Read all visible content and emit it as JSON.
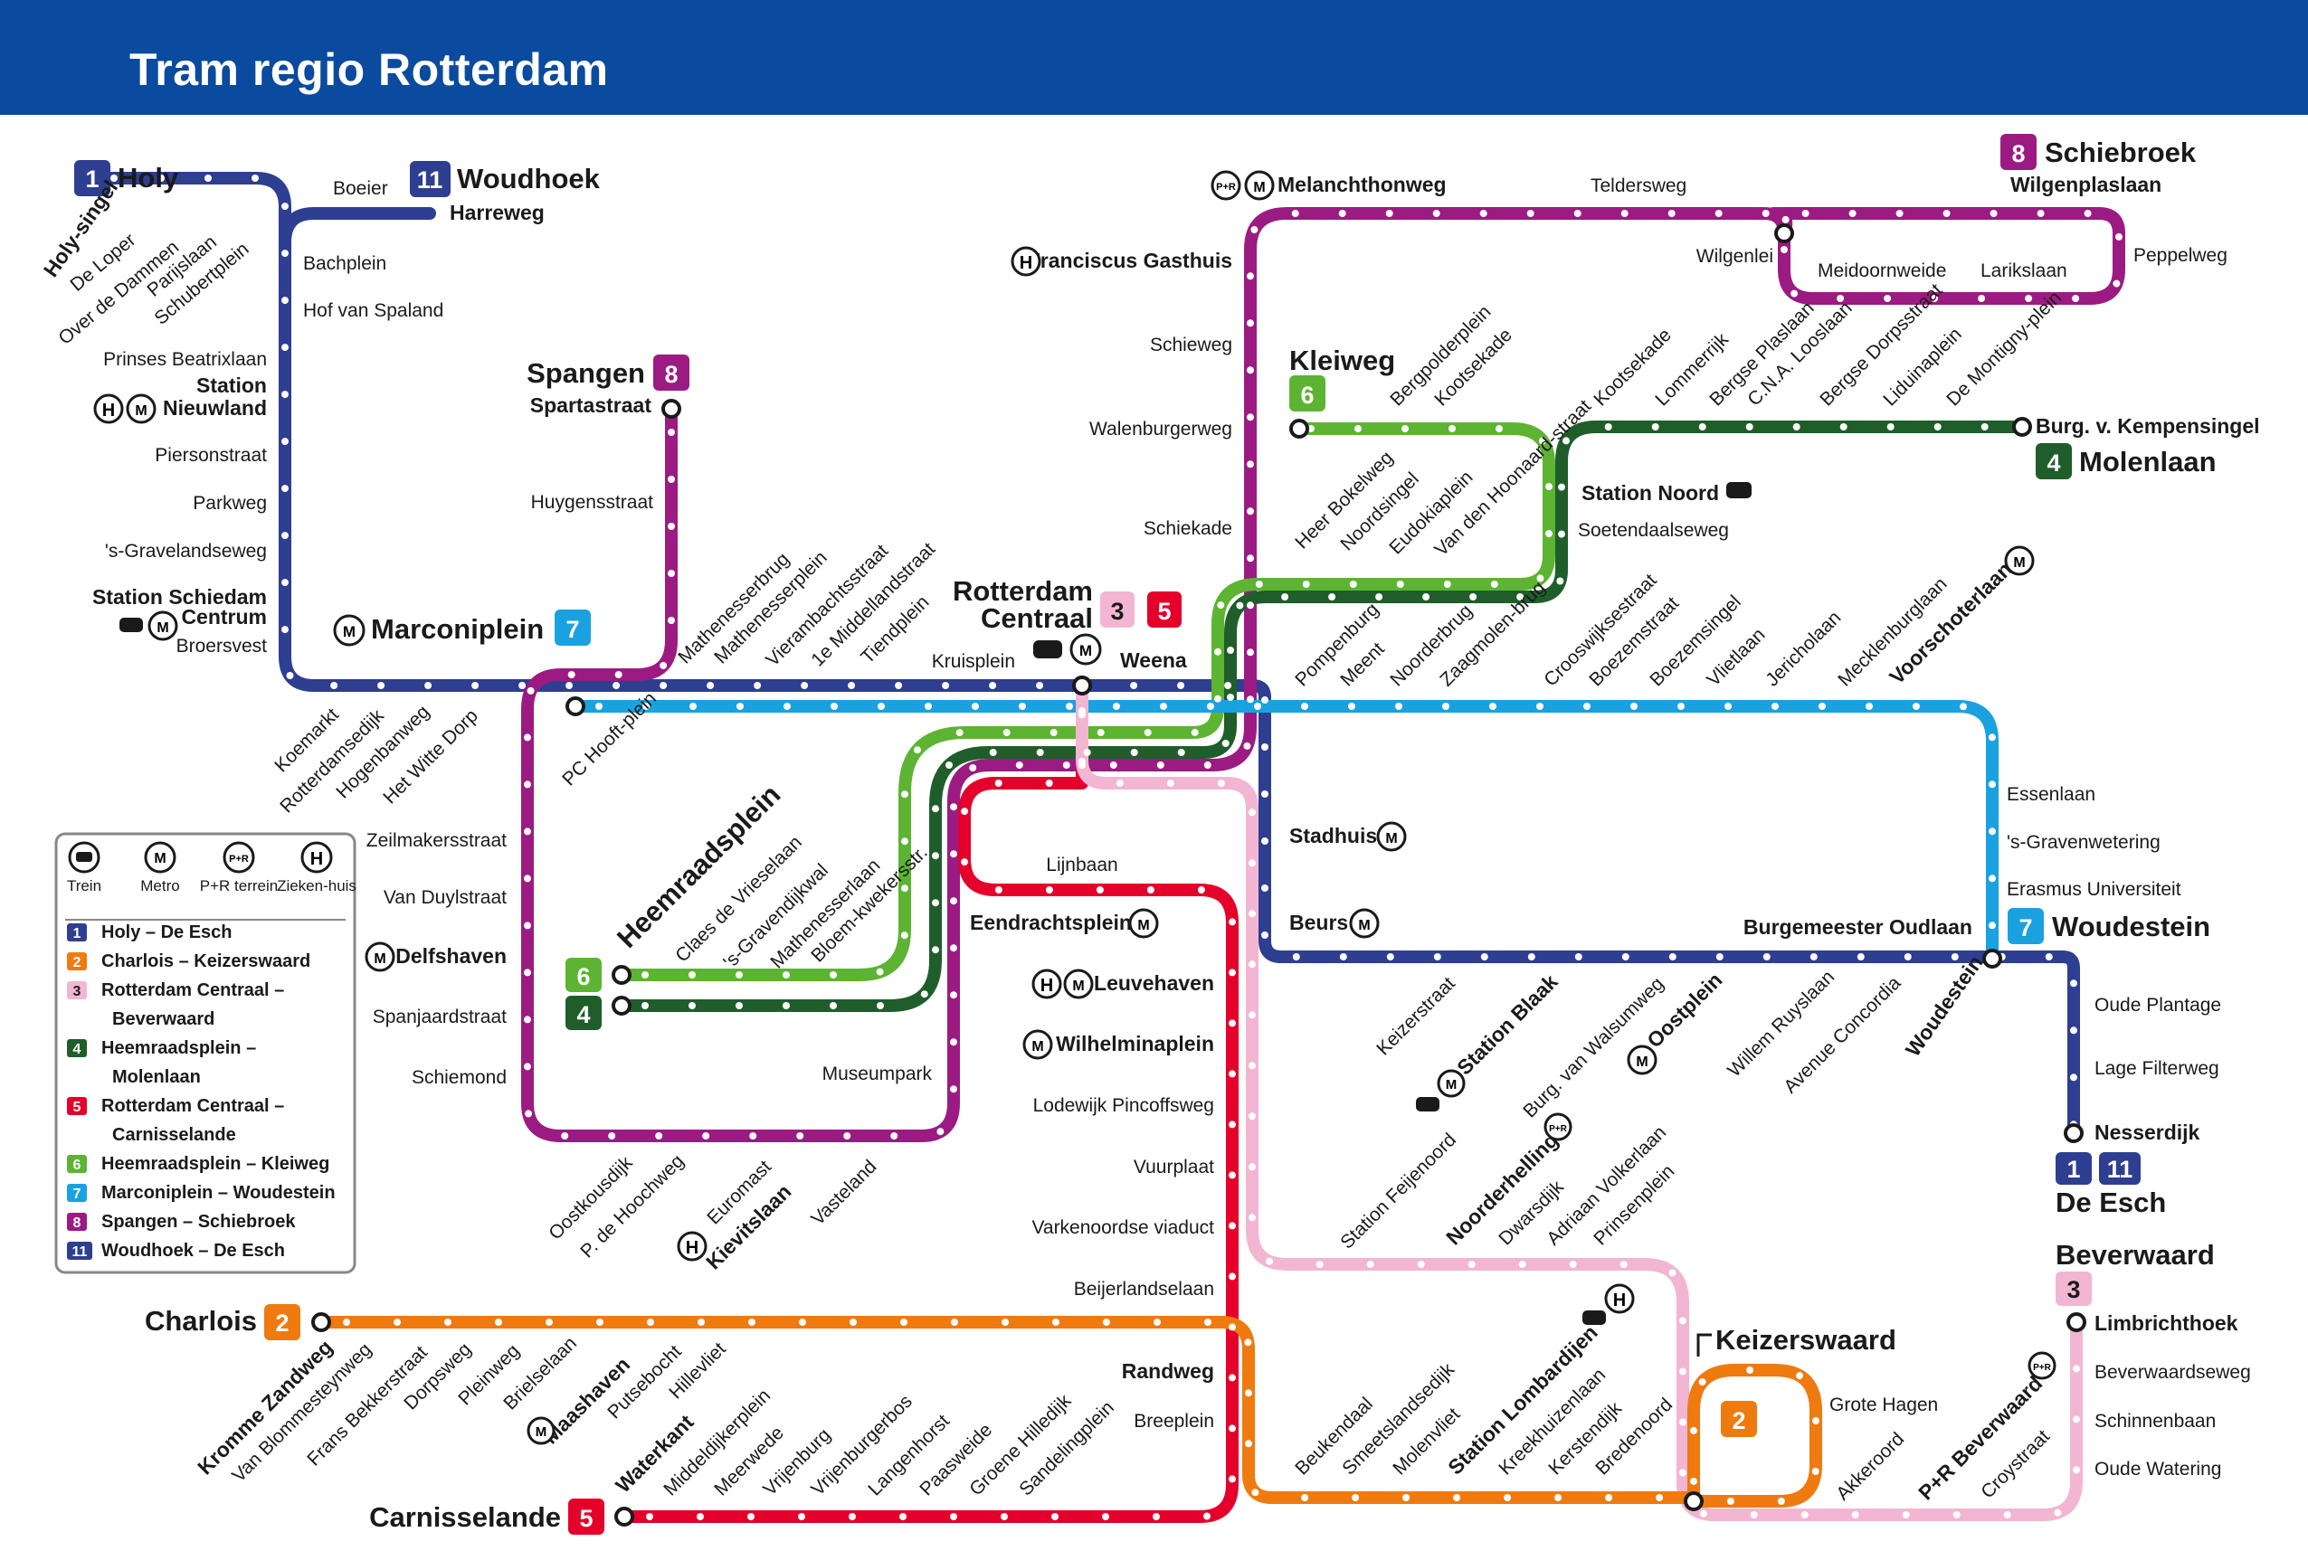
{
  "title": "Tram regio Rotterdam",
  "colors": {
    "header": "#0a4a9f",
    "line1": "#2e3e90",
    "line2": "#ef7a10",
    "line3": "#f2b6d2",
    "line4": "#1f5e2a",
    "line5": "#e4002b",
    "line6": "#5cb432",
    "line7": "#1aa1e0",
    "line8": "#9b1b83",
    "line11": "#2e3e90"
  },
  "terminals": {
    "holy": {
      "number": "1",
      "name": "Holy"
    },
    "woudhoek": {
      "number": "11",
      "name": "Woudhoek"
    },
    "spangen": {
      "number": "8",
      "name": "Spangen"
    },
    "schiebroek": {
      "number": "8",
      "name": "Schiebroek"
    },
    "kleiweg": {
      "number": "6",
      "name": "Kleiweg"
    },
    "molenlaan": {
      "number": "4",
      "name": "Molenlaan"
    },
    "marconiplein": {
      "number": "7",
      "name": "Marconiplein"
    },
    "rotterdam_centraal": {
      "numbers": [
        "3",
        "5"
      ],
      "name1": "Rotterdam",
      "name2": "Centraal"
    },
    "heemraadsplein": {
      "numbers": [
        "6",
        "4"
      ],
      "name": "Heemraadsplein"
    },
    "woudestein": {
      "number": "7",
      "name": "Woudestein"
    },
    "de_esch": {
      "numbers": [
        "1",
        "11"
      ],
      "name": "De Esch"
    },
    "beverwaard": {
      "number": "3",
      "name": "Beverwaard"
    },
    "charlois": {
      "number": "2",
      "name": "Charlois"
    },
    "carnisselande": {
      "number": "5",
      "name": "Carnisselande"
    },
    "keizerswaard": {
      "number": "2",
      "name": "Keizerswaard"
    }
  },
  "stations": {
    "holy_singel": "Holy-singel",
    "de_loper": "De Loper",
    "over_de_dammen": "Over de Dammen",
    "parijslaan": "Parijslaan",
    "schubertplein": "Schubertplein",
    "boeier": "Boeier",
    "harreweg": "Harreweg",
    "bachplein": "Bachplein",
    "hof_van_spaland": "Hof van Spaland",
    "prinses_beatrixlaan": "Prinses Beatrixlaan",
    "station_nieuwland_1": "Station",
    "station_nieuwland_2": "Nieuwland",
    "piersonstraat": "Piersonstraat",
    "parkweg": "Parkweg",
    "s_gravelandseweg": "'s-Gravelandseweg",
    "station_schiedam_1": "Station Schiedam",
    "station_schiedam_2": "Centrum",
    "broersvest": "Broersvest",
    "spartastraat": "Spartastraat",
    "huygensstraat": "Huygensstraat",
    "koemarkt": "Koemarkt",
    "rotterdamsedijk": "Rotterdamsedijk",
    "hogenbanweg": "Hogenbanweg",
    "het_witte_dorp": "Het Witte Dorp",
    "pc_hooftplein": "PC Hooft-plein",
    "mathenesserbrug": "Mathenesserbrug",
    "mathenesserplein": "Mathenesserplein",
    "vierambachtsstraat": "Vierambachtsstraat",
    "eerste_middellandstraat": "1e Middellandstraat",
    "tiendplein": "Tiendplein",
    "kruisplein": "Kruisplein",
    "weena": "Weena",
    "melanchthonweg": "Melanchthonweg",
    "teldersweg": "Teldersweg",
    "wilgenplaslaan": "Wilgenplaslaan",
    "wilgenlei": "Wilgenlei",
    "meidoornweide": "Meidoornweide",
    "larikslaan": "Larikslaan",
    "peppelweg": "Peppelweg",
    "franciscus_gasthuis": "Franciscus Gasthuis",
    "schieweg": "Schieweg",
    "walenburgerweg": "Walenburgerweg",
    "schiekade": "Schiekade",
    "bergpolderplein": "Bergpolderplein",
    "kootsekade_6": "Kootsekade",
    "kootsekade_4": "Kootsekade",
    "lommerrijk": "Lommerrijk",
    "bergse_plaslaan": "Bergse Plaslaan",
    "cna_looslaan": "C.N.A. Looslaan",
    "bergse_dorpsstraat": "Bergse Dorpsstraat",
    "liduinaplein": "Liduinaplein",
    "de_montignyplein": "De Montigny-plein",
    "burg_v_kempensingel": "Burg. v. Kempensingel",
    "station_noord": "Station Noord",
    "soetendaalseweg": "Soetendaalseweg",
    "heer_bokelweg": "Heer Bokelweg",
    "noordsingel": "Noordsingel",
    "eudokiaplein": "Eudokiaplein",
    "van_den_hoonaardstraat": "Van den Hoonaard-straat",
    "pompenburg": "Pompenburg",
    "meent": "Meent",
    "noorderbrug": "Noorderbrug",
    "zaagmolenbrug": "Zaagmolen-brug",
    "crooswijksestraat": "Crooswijksestraat",
    "boezemstraat": "Boezemstraat",
    "boezemsingel": "Boezemsingel",
    "vlietlaan": "Vlietlaan",
    "jericholaan": "Jericholaan",
    "mecklenburglaan": "Mecklenburglaan",
    "voorschoterlaan": "Voorschoterlaan",
    "essenlaan": "Essenlaan",
    "s_gravenwetering": "'s-Gravenwetering",
    "erasmus_universiteit": "Erasmus Universiteit",
    "burgemeester_oudlaan": "Burgemeester Oudlaan",
    "oude_plantage": "Oude Plantage",
    "lage_filterweg": "Lage Filterweg",
    "nesserdijk": "Nesserdijk",
    "stadhuis": "Stadhuis",
    "beurs": "Beurs",
    "eendrachtsplein": "Eendrachtsplein",
    "lijnbaan": "Lijnbaan",
    "leuvehaven": "Leuvehaven",
    "wilhelminaplein": "Wilhelminaplein",
    "lodewijk_pincoffsweg": "Lodewijk Pincoffsweg",
    "vuurplaat": "Vuurplaat",
    "varkenoordse_viaduct": "Varkenoordse viaduct",
    "beijerlandselaan": "Beijerlandselaan",
    "randweg": "Randweg",
    "breeplein": "Breeplein",
    "claes_de_vrieselaan": "Claes de Vrieselaan",
    "s_gravendijkwal": "'s-Gravendijkwal",
    "mathenesserlaan": "Mathenesserlaan",
    "bloemkwekersstr": "Bloem-kwekersstr.",
    "zeilmakersstraat": "Zeilmakersstraat",
    "van_duylstraat": "Van Duylstraat",
    "delfshaven": "Delfshaven",
    "spanjaardstraat": "Spanjaardstraat",
    "schiemond": "Schiemond",
    "museumpark": "Museumpark",
    "oostkousdijk": "Oostkousdijk",
    "p_de_hoochweg": "P. de Hoochweg",
    "euromast": "Euromast",
    "kievitslaan": "Kievitslaan",
    "vasteland": "Vasteland",
    "keizerstraat": "Keizerstraat",
    "station_blaak": "Station Blaak",
    "burg_van_walsumweg": "Burg. van Walsumweg",
    "oostplein": "Oostplein",
    "willem_ruyslaan": "Willem Ruyslaan",
    "avenue_concordia": "Avenue Concordia",
    "woudestein_stop": "Woudestein",
    "station_feijenoord": "Station Feijenoord",
    "noorderhelling": "Noorderhelling",
    "dwarsdijk": "Dwarsdijk",
    "adriaan_volkerlaan": "Adriaan Volkerlaan",
    "prinsenplein": "Prinsenplein",
    "limbrichthoek": "Limbrichthoek",
    "beverwaardseweg": "Beverwaardseweg",
    "schinnenbaan": "Schinnenbaan",
    "oude_watering": "Oude Watering",
    "grote_hagen": "Grote Hagen",
    "akkeroord": "Akkeroord",
    "p_r_beverwaard": "P+R Beverwaard",
    "croystraat": "Croystraat",
    "kromme_zandweg": "Kromme Zandweg",
    "van_blommesteynweg": "Van Blommesteynweg",
    "frans_bekkerstraat": "Frans Bekkerstraat",
    "dorpsweg": "Dorpsweg",
    "pleinweg": "Pleinweg",
    "brielselaan": "Brielselaan",
    "maashaven": "Maashaven",
    "putsebocht": "Putsebocht",
    "hillevliet": "Hillevliet",
    "waterkant": "Waterkant",
    "middeldijkerplein": "Middeldijkerplein",
    "meerwede": "Meerwede",
    "vrijenburg": "Vrijenburg",
    "vrijenburgerbos": "Vrijenburgerbos",
    "langenhorst": "Langenhorst",
    "paasweide": "Paasweide",
    "groene_hilledijk": "Groene Hilledijk",
    "sandelingplein": "Sandelingplein",
    "beukendaal": "Beukendaal",
    "smeetslandsedijk": "Smeetslandsedijk",
    "molenvliet": "Molenvliet",
    "station_lombardijen": "Station Lombardijen",
    "kreekhuizenlaan": "Kreekhuizenlaan",
    "kerstendijk": "Kerstendijk",
    "bredenoord": "Bredenoord"
  },
  "icons": {
    "train": "train-icon",
    "metro": "metro-icon",
    "park_ride": "park-ride-icon",
    "hospital": "hospital-icon",
    "metro_glyph": "M",
    "hospital_glyph": "H",
    "pr_glyph": "P+R"
  },
  "legend": {
    "icons": [
      {
        "label": "Trein"
      },
      {
        "label": "Metro"
      },
      {
        "label": "P+R terrein"
      },
      {
        "label": "Zieken-huis"
      }
    ],
    "lines": [
      {
        "number": "1",
        "name1": "Holy – De Esch",
        "name2": ""
      },
      {
        "number": "2",
        "name1": "Charlois – Keizerswaard",
        "name2": ""
      },
      {
        "number": "3",
        "name1": "Rotterdam Centraal –",
        "name2": "Beverwaard"
      },
      {
        "number": "4",
        "name1": "Heemraadsplein –",
        "name2": "Molenlaan"
      },
      {
        "number": "5",
        "name1": "Rotterdam Centraal –",
        "name2": "Carnisselande"
      },
      {
        "number": "6",
        "name1": "Heemraadsplein – Kleiweg",
        "name2": ""
      },
      {
        "number": "7",
        "name1": "Marconiplein – Woudestein",
        "name2": ""
      },
      {
        "number": "8",
        "name1": "Spangen – Schiebroek",
        "name2": ""
      },
      {
        "number": "11",
        "name1": "Woudhoek – De Esch",
        "name2": ""
      }
    ]
  }
}
